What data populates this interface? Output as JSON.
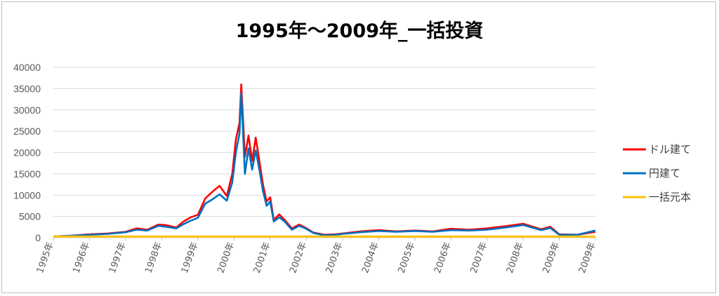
{
  "chart_data": {
    "type": "line",
    "title": "1995年～2009年_一括投資",
    "xlabel": "",
    "ylabel": "",
    "ylim": [
      0,
      40000
    ],
    "yticks": [
      "0",
      "5000",
      "10000",
      "15000",
      "20000",
      "25000",
      "30000",
      "35000",
      "40000"
    ],
    "xticks": [
      "1995年",
      "1996年",
      "1997年",
      "1998年",
      "1999年",
      "2000年",
      "2001年",
      "2002年",
      "2003年",
      "2004年",
      "2005年",
      "2006年",
      "2007年",
      "2008年",
      "2009年",
      "2009年"
    ],
    "grid": true,
    "legend_position": "right",
    "x": [
      1995.0,
      1995.5,
      1996.0,
      1996.5,
      1997.0,
      1997.3,
      1997.6,
      1997.9,
      1998.1,
      1998.4,
      1998.6,
      1998.8,
      1999.0,
      1999.2,
      1999.4,
      1999.6,
      1999.8,
      1999.95,
      2000.05,
      2000.15,
      2000.2,
      2000.3,
      2000.4,
      2000.5,
      2000.6,
      2000.7,
      2000.8,
      2000.9,
      2001.0,
      2001.1,
      2001.25,
      2001.4,
      2001.6,
      2001.8,
      2001.95,
      2002.2,
      2002.5,
      2002.8,
      2003.0,
      2003.5,
      2004.0,
      2004.5,
      2005.0,
      2005.5,
      2006.0,
      2006.5,
      2007.0,
      2007.5,
      2008.0,
      2008.5,
      2008.75,
      2009.0,
      2009.5,
      2010.0
    ],
    "series": [
      {
        "name": "ドル建て",
        "color": "#ff0000",
        "values": [
          300,
          500,
          800,
          1000,
          1400,
          2200,
          1900,
          3100,
          3000,
          2400,
          3800,
          4800,
          5400,
          9200,
          10800,
          12200,
          9800,
          15000,
          23000,
          27000,
          36000,
          19000,
          24000,
          18000,
          23500,
          18000,
          12500,
          8500,
          9500,
          4200,
          5500,
          4200,
          2200,
          3100,
          2500,
          1200,
          700,
          800,
          1000,
          1500,
          1800,
          1500,
          1700,
          1500,
          2100,
          1900,
          2200,
          2700,
          3300,
          2000,
          2600,
          800,
          700,
          1400
        ]
      },
      {
        "name": "円建て",
        "color": "#0070c0",
        "values": [
          300,
          500,
          700,
          900,
          1300,
          1900,
          1700,
          2800,
          2600,
          2200,
          3200,
          4000,
          4700,
          8000,
          9000,
          10200,
          8700,
          13000,
          20000,
          24500,
          34000,
          15000,
          21000,
          16000,
          20500,
          16000,
          11000,
          7500,
          8500,
          3800,
          4800,
          3800,
          1900,
          2800,
          2300,
          1100,
          600,
          700,
          900,
          1300,
          1600,
          1400,
          1600,
          1400,
          1800,
          1700,
          1900,
          2400,
          3000,
          1800,
          2300,
          700,
          700,
          1700
        ]
      },
      {
        "name": "一括元本",
        "color": "#ffc000",
        "values": [
          300,
          300,
          300,
          300,
          300,
          300,
          300,
          300,
          300,
          300,
          300,
          300,
          300,
          300,
          300,
          300,
          300,
          300,
          300,
          300,
          300,
          300,
          300,
          300,
          300,
          300,
          300,
          300,
          300,
          300,
          300,
          300,
          300,
          300,
          300,
          300,
          300,
          300,
          300,
          300,
          300,
          300,
          300,
          300,
          300,
          300,
          300,
          300,
          300,
          300,
          300,
          300,
          300,
          300
        ]
      }
    ]
  }
}
